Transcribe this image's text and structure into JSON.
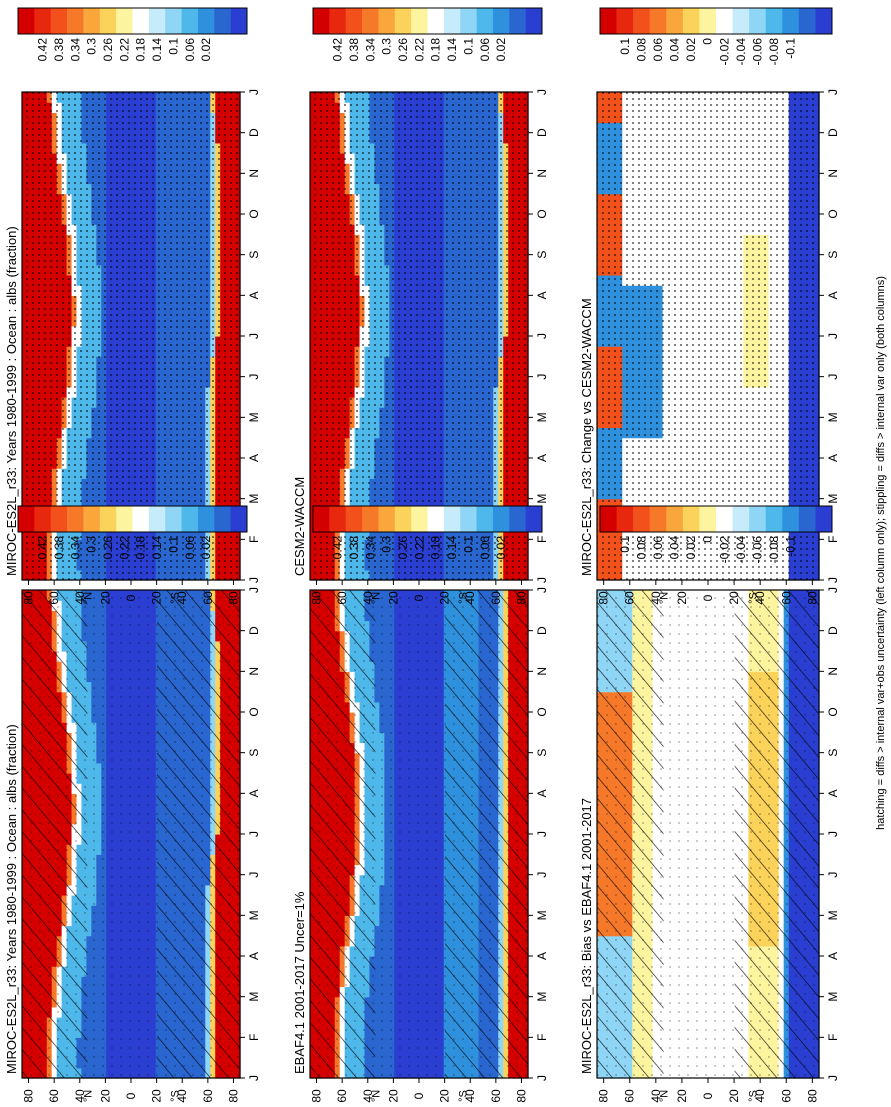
{
  "footnote": "hatching = diffs > internal var+obs uncertainty (left column only); stippling = diffs > internal var only (both columns)",
  "months": [
    "J",
    "F",
    "M",
    "A",
    "M",
    "J",
    "J",
    "A",
    "S",
    "O",
    "N",
    "D",
    "J"
  ],
  "lat_ticks": [
    "80",
    "60",
    "40",
    "20",
    "0",
    "20",
    "40",
    "60",
    "80"
  ],
  "lat_hemis": {
    "north": "°N",
    "south": "°S"
  },
  "colorbars": {
    "abs": {
      "labels": [
        "0.42",
        "0.38",
        "0.34",
        "0.3",
        "0.26",
        "0.22",
        "0.18",
        "0.14",
        "0.1",
        "0.06",
        "0.02"
      ],
      "colors": [
        "#d40000",
        "#e8270f",
        "#f2511c",
        "#f6792a",
        "#f9a63b",
        "#fbd35a",
        "#fdf4a0",
        "#ffffff",
        "#c6ecfb",
        "#8fd5f5",
        "#4fb8eb",
        "#2f91dd",
        "#2a66cf",
        "#2a3fd1"
      ]
    },
    "diff": {
      "labels": [
        "0.1",
        "0.08",
        "0.06",
        "0.04",
        "0.02",
        "0",
        "-0.02",
        "-0.04",
        "-0.06",
        "-0.08",
        "-0.1"
      ],
      "colors": [
        "#d40000",
        "#e8270f",
        "#f2511c",
        "#f6792a",
        "#f9a63b",
        "#fbd35a",
        "#fdf4a0",
        "#ffffff",
        "#c6ecfb",
        "#8fd5f5",
        "#4fb8eb",
        "#2f91dd",
        "#2a66cf",
        "#2a3fd1"
      ]
    }
  },
  "panels": [
    {
      "id": "tl",
      "title": "MIROC-ES2L_r33: Years 1980-1999 : Ocean : albs (fraction)",
      "kind": "abs",
      "hatch": true,
      "stipple": "sparse"
    },
    {
      "id": "tr",
      "title": "MIROC-ES2L_r33: Years 1980-1999 : Ocean : albs (fraction)",
      "kind": "abs",
      "hatch": false,
      "stipple": "dense"
    },
    {
      "id": "ml",
      "title": "EBAF4.1 2001-2017 Uncer=1%",
      "kind": "abs",
      "hatch": true,
      "stipple": "sparse"
    },
    {
      "id": "mr",
      "title": "CESM2-WACCM",
      "kind": "abs",
      "hatch": false,
      "stipple": "dense"
    },
    {
      "id": "bl",
      "title": "MIROC-ES2L_r33: Bias vs EBAF4.1 2001-2017",
      "kind": "diff",
      "hatch": true,
      "stipple": "sparse"
    },
    {
      "id": "br",
      "title": "MIROC-ES2L_r33: Change vs CESM2-WACCM",
      "kind": "diff",
      "hatch": false,
      "stipple": "dense"
    }
  ],
  "chart_data": {
    "type": "heatmap",
    "x": "month (Jan to Jan)",
    "y": "latitude (80N to 80S)",
    "abs_range": [
      0.02,
      0.42
    ],
    "diff_range": [
      -0.1,
      0.1
    ],
    "panel_fields": {
      "tl": "model: high albedo (>0.4) poleward of ~60N in boreal winter and poleward of ~62S year-round edge; tropics/subtropics ~0.06-0.1",
      "tr": "model (same as top-left)",
      "ml": "observations: high albedo poleward of ~60N and ~65S; mid-latitudes ~0.1-0.14",
      "mr": "CESM2-WACCM: high albedo poleward of ~60N and ~62S; ocean ~0.06",
      "bl": "bias: positive (+0.02 to +0.1) high northern latitudes in spring/summer, positive ~+0.04 at 40-60S, strongly negative (<-0.1) poleward of 65S",
      "br": "change: mostly near 0; negative (<-0.1) poleward of 62S; mixed near 60-80N"
    }
  }
}
